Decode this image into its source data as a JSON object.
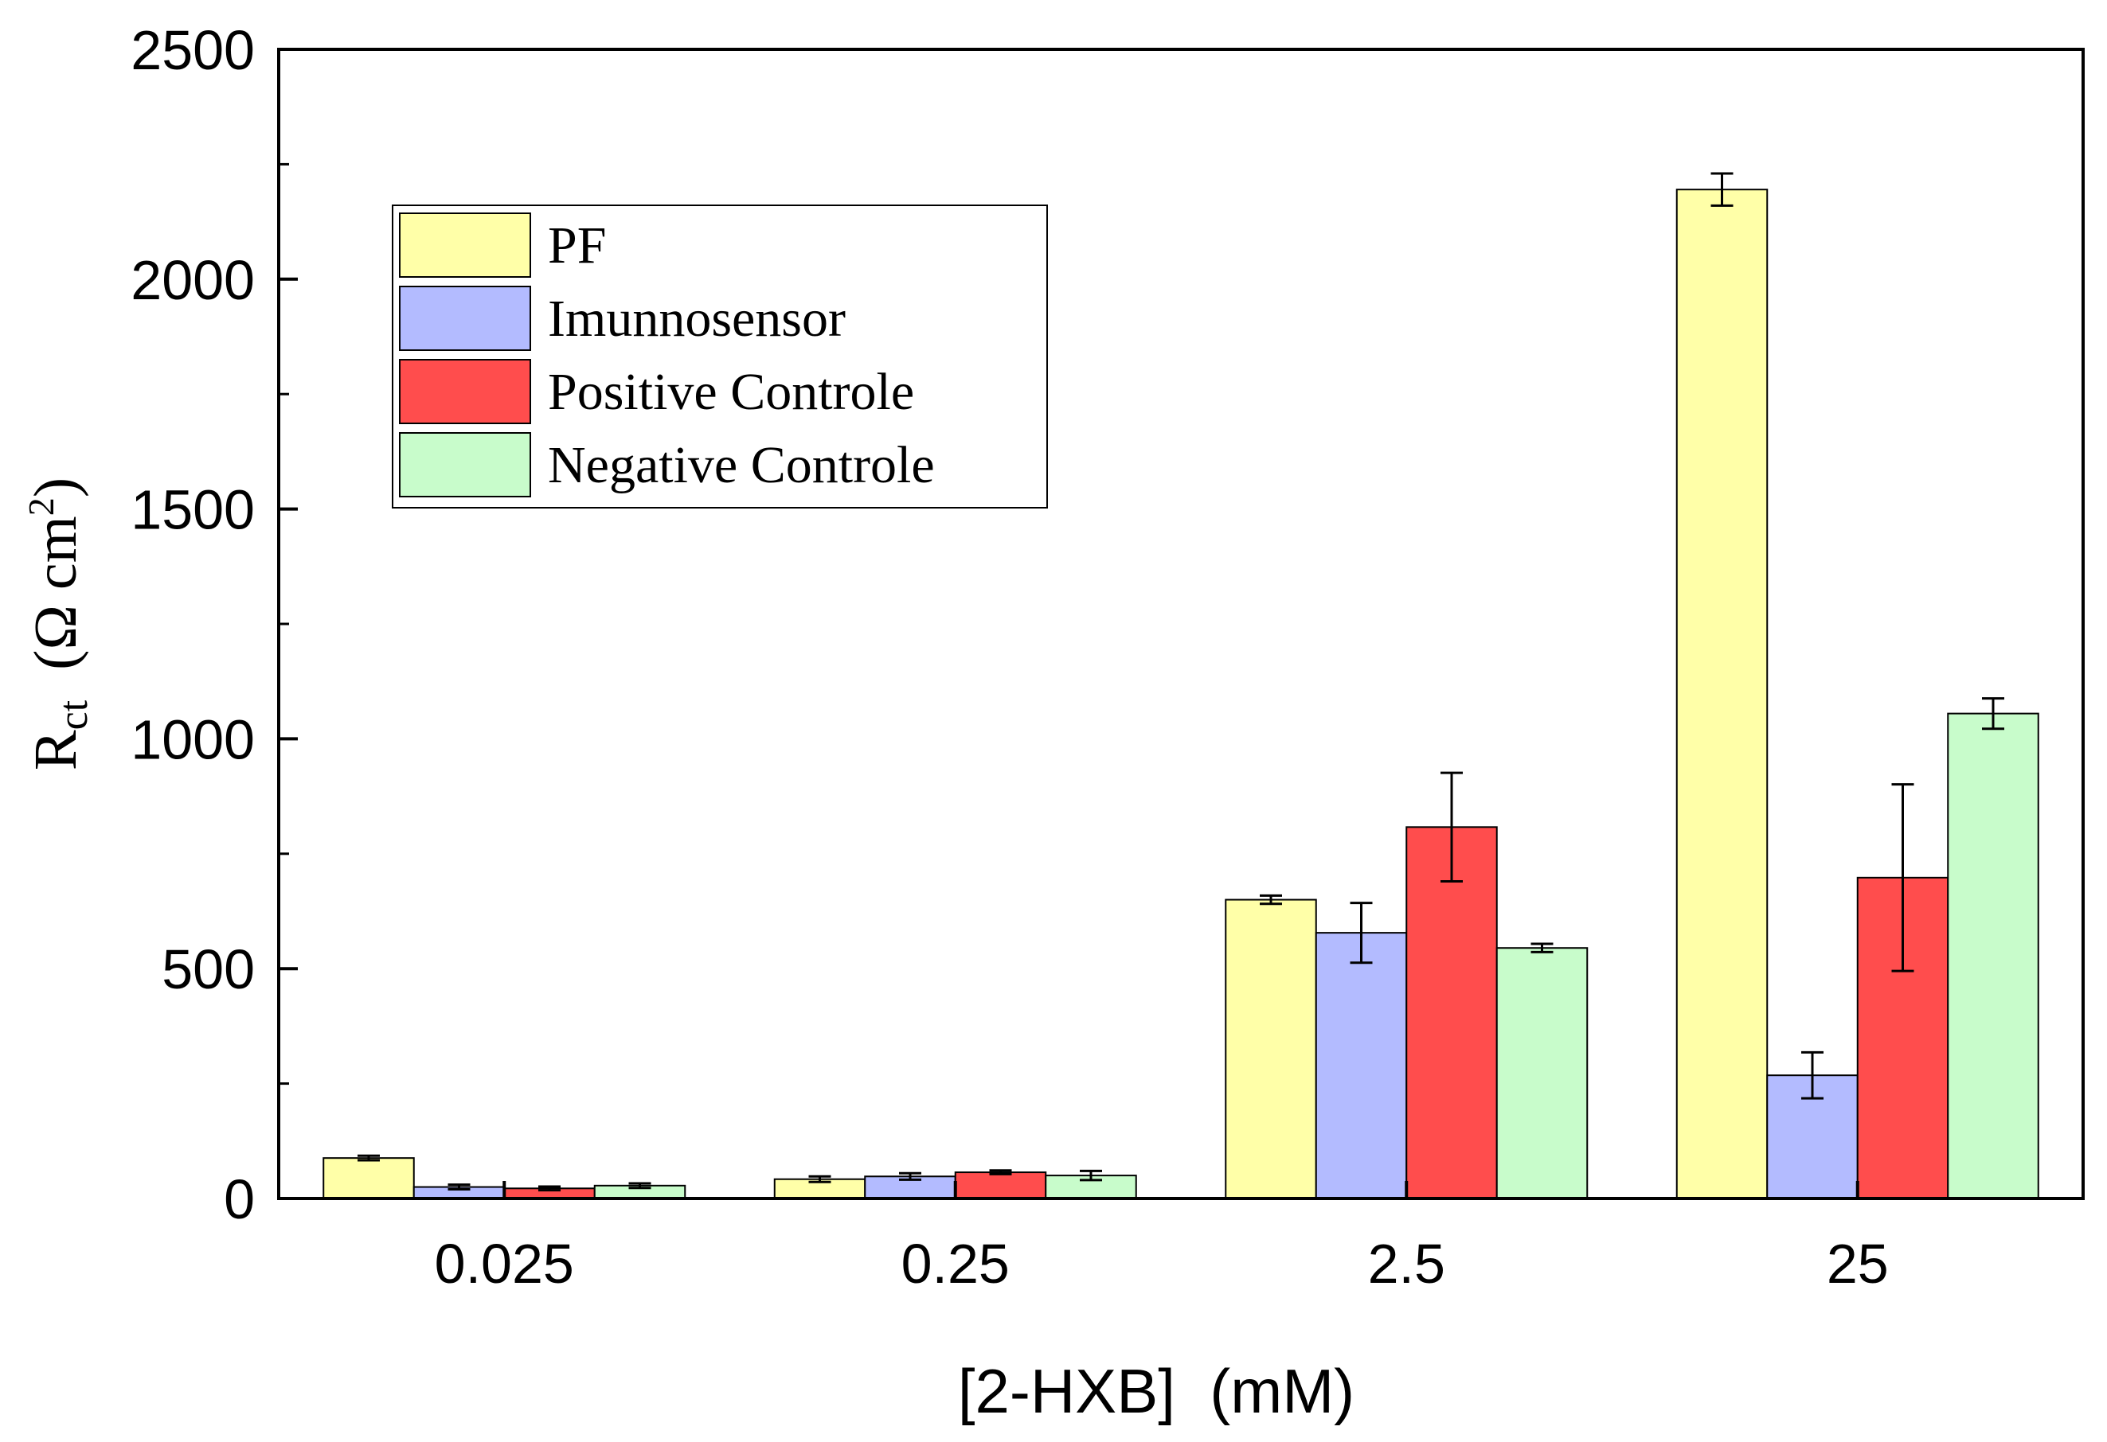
{
  "chart_data": {
    "type": "bar",
    "title": "",
    "xlabel": "[2-HXB]  (mM)",
    "ylabel": {
      "main": "R",
      "subscript": "ct",
      "units_open": "  (Ω cm",
      "superscript": "2",
      "units_close": ")"
    },
    "categories": [
      "0.025",
      "0.25",
      "2.5",
      "25"
    ],
    "ylim": [
      0,
      2500
    ],
    "yticks": [
      0,
      500,
      1000,
      1500,
      2000,
      2500
    ],
    "ytick_labels": [
      "0",
      "500",
      "1000",
      "1500",
      "2000",
      "2500"
    ],
    "grid": false,
    "legend_position": "top-left",
    "series": [
      {
        "name": "PF",
        "color": "#ffffa8",
        "values": [
          88,
          42,
          650,
          2195
        ],
        "errors": [
          5,
          6,
          9,
          35
        ]
      },
      {
        "name": "Imunnosensor",
        "color": "#b3bbff",
        "values": [
          25,
          48,
          578,
          268
        ],
        "errors": [
          5,
          7,
          65,
          50
        ]
      },
      {
        "name": "Positive Controle",
        "color": "#ff4d4d",
        "values": [
          22,
          57,
          808,
          698
        ],
        "errors": [
          4,
          4,
          118,
          203
        ]
      },
      {
        "name": "Negative Controle",
        "color": "#c8fccb",
        "values": [
          28,
          50,
          545,
          1055
        ],
        "errors": [
          5,
          10,
          9,
          33
        ]
      }
    ]
  }
}
